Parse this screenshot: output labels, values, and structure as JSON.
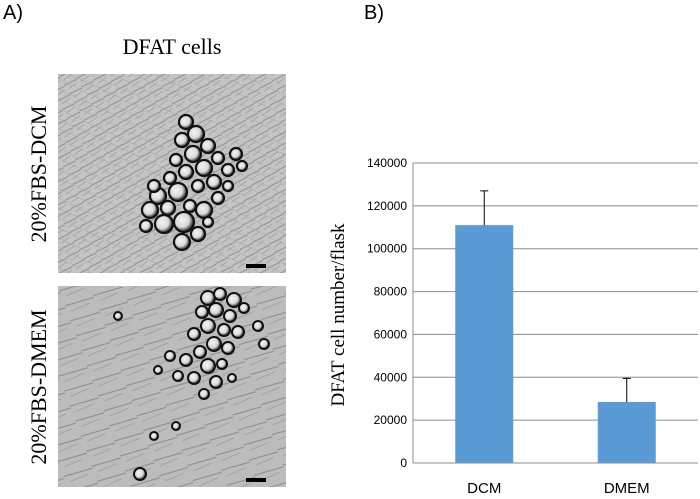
{
  "panel_a": {
    "label": "A)",
    "title": "DFAT cells",
    "rows": [
      {
        "label": "20%FBS-DCM"
      },
      {
        "label": "20%FBS-DMEM"
      }
    ]
  },
  "panel_b": {
    "label": "B)"
  },
  "chart_data": {
    "type": "bar",
    "title": "",
    "xlabel": "",
    "ylabel": "DFAT cell number/flask",
    "categories": [
      "DCM",
      "DMEM"
    ],
    "values": [
      111000,
      28500
    ],
    "error_upper": [
      127000,
      39500
    ],
    "ylim": [
      0,
      140000
    ],
    "yticks": [
      "0",
      "20000",
      "40000",
      "60000",
      "80000",
      "100000",
      "120000",
      "140000"
    ],
    "grid": true,
    "bar_color": "#5b9bd5"
  }
}
